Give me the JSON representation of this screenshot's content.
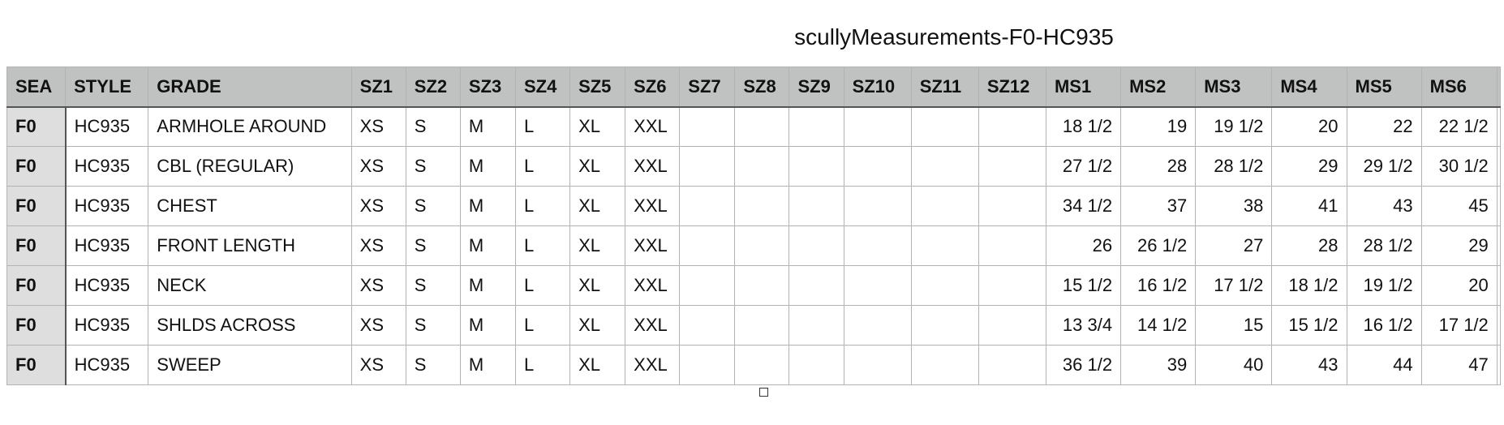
{
  "title": "scullyMeasurements-F0-HC935",
  "columns": [
    "SEA",
    "STYLE",
    "GRADE",
    "SZ1",
    "SZ2",
    "SZ3",
    "SZ4",
    "SZ5",
    "SZ6",
    "SZ7",
    "SZ8",
    "SZ9",
    "SZ10",
    "SZ11",
    "SZ12",
    "MS1",
    "MS2",
    "MS3",
    "MS4",
    "MS5",
    "MS6",
    ""
  ],
  "rows": [
    [
      "F0",
      "HC935",
      "ARMHOLE AROUND",
      "XS",
      "S",
      "M",
      "L",
      "XL",
      "XXL",
      "",
      "",
      "",
      "",
      "",
      "",
      "18 1/2",
      "19",
      "19 1/2",
      "20",
      "22",
      "22 1/2",
      ""
    ],
    [
      "F0",
      "HC935",
      "CBL (REGULAR)",
      "XS",
      "S",
      "M",
      "L",
      "XL",
      "XXL",
      "",
      "",
      "",
      "",
      "",
      "",
      "27 1/2",
      "28",
      "28 1/2",
      "29",
      "29 1/2",
      "30 1/2",
      ""
    ],
    [
      "F0",
      "HC935",
      "CHEST",
      "XS",
      "S",
      "M",
      "L",
      "XL",
      "XXL",
      "",
      "",
      "",
      "",
      "",
      "",
      "34 1/2",
      "37",
      "38",
      "41",
      "43",
      "45",
      ""
    ],
    [
      "F0",
      "HC935",
      "FRONT LENGTH",
      "XS",
      "S",
      "M",
      "L",
      "XL",
      "XXL",
      "",
      "",
      "",
      "",
      "",
      "",
      "26",
      "26 1/2",
      "27",
      "28",
      "28 1/2",
      "29",
      ""
    ],
    [
      "F0",
      "HC935",
      "NECK",
      "XS",
      "S",
      "M",
      "L",
      "XL",
      "XXL",
      "",
      "",
      "",
      "",
      "",
      "",
      "15 1/2",
      "16 1/2",
      "17 1/2",
      "18 1/2",
      "19 1/2",
      "20",
      ""
    ],
    [
      "F0",
      "HC935",
      "SHLDS ACROSS",
      "XS",
      "S",
      "M",
      "L",
      "XL",
      "XXL",
      "",
      "",
      "",
      "",
      "",
      "",
      "13 3/4",
      "14 1/2",
      "15",
      "15 1/2",
      "16 1/2",
      "17 1/2",
      ""
    ],
    [
      "F0",
      "HC935",
      "SWEEP",
      "XS",
      "S",
      "M",
      "L",
      "XL",
      "XXL",
      "",
      "",
      "",
      "",
      "",
      "",
      "36 1/2",
      "39",
      "40",
      "43",
      "44",
      "47",
      ""
    ]
  ]
}
